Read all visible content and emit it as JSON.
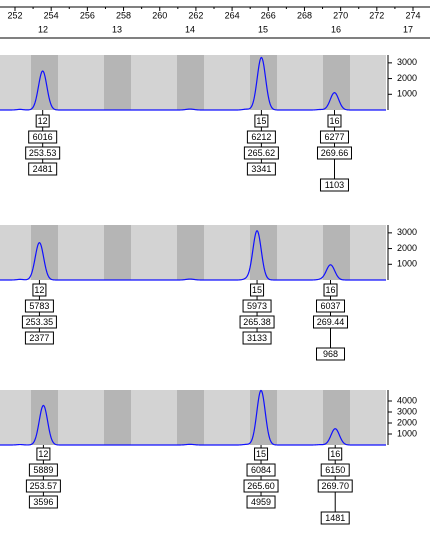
{
  "ruler": {
    "bp_ticks": [
      "252",
      "254",
      "256",
      "258",
      "260",
      "262",
      "264",
      "266",
      "268",
      "270",
      "272",
      "274"
    ],
    "marker_labels": [
      "12",
      "13",
      "14",
      "15",
      "16",
      "17"
    ]
  },
  "panels": [
    {
      "yticks": [
        "1000",
        "2000",
        "3000"
      ],
      "ymax": "3500",
      "peaks": [
        {
          "allele": "12",
          "point": "6016",
          "size": "253.53",
          "height": "2481"
        },
        {
          "allele": "15",
          "point": "6212",
          "size": "265.62",
          "height": "3341"
        },
        {
          "allele": "16",
          "point": "6277",
          "size": "269.66",
          "height": "1103"
        }
      ]
    },
    {
      "yticks": [
        "1000",
        "2000",
        "3000"
      ],
      "ymax": "3500",
      "peaks": [
        {
          "allele": "12",
          "point": "5783",
          "size": "253.35",
          "height": "2377"
        },
        {
          "allele": "15",
          "point": "5973",
          "size": "265.38",
          "height": "3133"
        },
        {
          "allele": "16",
          "point": "6037",
          "size": "269.44",
          "height": "968"
        }
      ]
    },
    {
      "yticks": [
        "1000",
        "2000",
        "3000",
        "4000"
      ],
      "ymax": "5000",
      "peaks": [
        {
          "allele": "12",
          "point": "5889",
          "size": "253.57",
          "height": "3596"
        },
        {
          "allele": "15",
          "point": "6084",
          "size": "265.60",
          "height": "4959"
        },
        {
          "allele": "16",
          "point": "6150",
          "size": "269.70",
          "height": "1481"
        }
      ]
    }
  ]
}
